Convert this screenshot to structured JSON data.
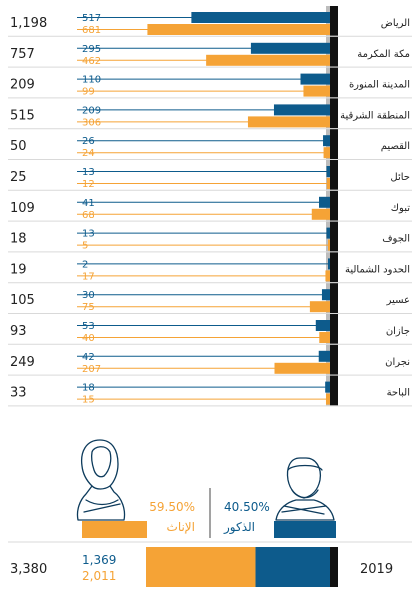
{
  "colors": {
    "male": "#0d5b8c",
    "female": "#f5a336",
    "axis": "#111111",
    "gray": "#bdbdbd",
    "text": "#222222"
  },
  "chart_data": {
    "type": "bar",
    "orientation": "horizontal-grouped",
    "direction": "right-to-left",
    "series": [
      {
        "key": "male",
        "name": "الذكور"
      },
      {
        "key": "female",
        "name": "الإناث"
      }
    ],
    "regions": [
      {
        "name": "الرياض",
        "total": "1,198",
        "male": 517,
        "female": 681
      },
      {
        "name": "مكة المكرمة",
        "total": "757",
        "male": 295,
        "female": 462
      },
      {
        "name": "المدينة المنورة",
        "total": "209",
        "male": 110,
        "female": 99
      },
      {
        "name": "المنطقة الشرقية",
        "total": "515",
        "male": 209,
        "female": 306
      },
      {
        "name": "القصيم",
        "total": "50",
        "male": 26,
        "female": 24
      },
      {
        "name": "حائل",
        "total": "25",
        "male": 13,
        "female": 12
      },
      {
        "name": "تبوك",
        "total": "109",
        "male": 41,
        "female": 68
      },
      {
        "name": "الجوف",
        "total": "18",
        "male": 13,
        "female": 5
      },
      {
        "name": "الحدود الشمالية",
        "total": "19",
        "male": 2,
        "female": 17
      },
      {
        "name": "عسير",
        "total": "105",
        "male": 30,
        "female": 75
      },
      {
        "name": "جازان",
        "total": "93",
        "male": 53,
        "female": 40
      },
      {
        "name": "نجران",
        "total": "249",
        "male": 42,
        "female": 207
      },
      {
        "name": "الباحة",
        "total": "33",
        "male": 18,
        "female": 15
      }
    ],
    "summary": {
      "year": "2019",
      "total": "3,380",
      "male": 1369,
      "female": 2011,
      "male_label": "1,369",
      "female_label": "2,011",
      "male_pct": 40.5,
      "female_pct": 59.5,
      "male_pct_label": "40.50%",
      "female_pct_label": "59.50%",
      "male_name": "الذكور",
      "female_name": "الإناث"
    }
  }
}
